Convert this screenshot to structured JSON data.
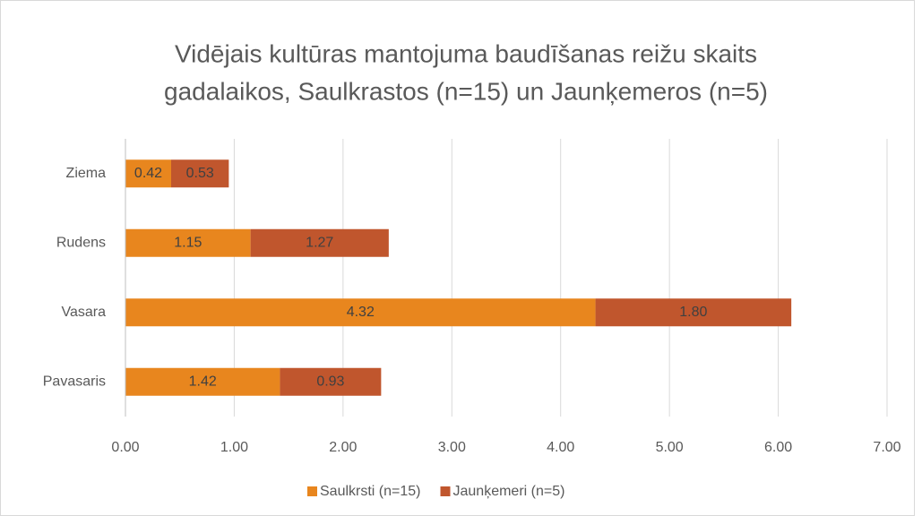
{
  "chart_data": {
    "type": "stacked_barh",
    "title": [
      "Vidējais kultūras mantojuma baudīšanas reižu skaits",
      "gadalaikos, Saulkrastos (n=15) un Jaunķemeros (n=5)"
    ],
    "categories": [
      "Ziema",
      "Rudens",
      "Vasara",
      "Pavasaris"
    ],
    "series": [
      {
        "name": "Saulkrsti (n=15)",
        "color": "#e8861e",
        "values": [
          0.42,
          1.15,
          4.32,
          1.42
        ],
        "value_labels": [
          "0.42",
          "1.15",
          "4.32",
          "1.42"
        ]
      },
      {
        "name": "Jaunķemeri (n=5)",
        "color": "#c0562d",
        "values": [
          0.53,
          1.27,
          1.8,
          0.93
        ],
        "value_labels": [
          "0.53",
          "1.27",
          "1.80",
          "0.93"
        ]
      }
    ],
    "xlim": [
      0,
      7
    ],
    "xticks": [
      {
        "value": 0,
        "label": "0.00"
      },
      {
        "value": 1,
        "label": "1.00"
      },
      {
        "value": 2,
        "label": "2.00"
      },
      {
        "value": 3,
        "label": "3.00"
      },
      {
        "value": 4,
        "label": "4.00"
      },
      {
        "value": 5,
        "label": "5.00"
      },
      {
        "value": 6,
        "label": "6.00"
      },
      {
        "value": 7,
        "label": "7.00"
      }
    ],
    "grid": true,
    "legend": "bottom"
  }
}
